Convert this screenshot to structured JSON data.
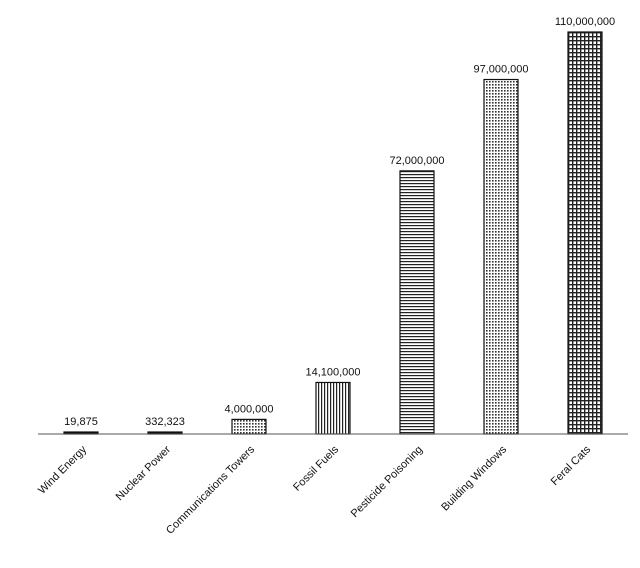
{
  "chart_data": {
    "type": "bar",
    "categories": [
      "Wind Energy",
      "Nuclear Power",
      "Communications Towers",
      "Fossil Fuels",
      "Pesticide Poisoning",
      "Building Windows",
      "Feral Cats"
    ],
    "values": [
      19875,
      332323,
      4000000,
      14100000,
      72000000,
      97000000,
      110000000
    ],
    "data_labels": [
      "19,875",
      "332,323",
      "4,000,000",
      "14,100,000",
      "72,000,000",
      "97,000,000",
      "110,000,000"
    ],
    "ylim": [
      0,
      110000000
    ],
    "grid": false,
    "legend": "none",
    "bar_patterns": [
      "solid",
      "solid",
      "dots",
      "vertical-lines",
      "horizontal-lines",
      "dots",
      "grid"
    ],
    "colors": {
      "bar_fill": "#ffffff",
      "bar_stroke": "#111111",
      "pattern": "#222222",
      "axis": "#555555"
    }
  }
}
